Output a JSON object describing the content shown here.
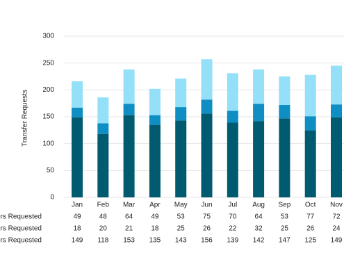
{
  "chart_data": {
    "type": "stacked-bar",
    "y_label": "Transfer Requests",
    "categories": [
      "Jan",
      "Feb",
      "Mar",
      "Apr",
      "May",
      "Jun",
      "Jul",
      "Aug",
      "Sep",
      "Oct",
      "Nov"
    ],
    "series": [
      {
        "name": "nsfers Requested",
        "color": "#005a70",
        "values": [
          149,
          118,
          153,
          135,
          143,
          156,
          139,
          142,
          147,
          125,
          149
        ]
      },
      {
        "name": "nsfers Requested",
        "color": "#0f8ec4",
        "values": [
          18,
          20,
          21,
          18,
          25,
          26,
          22,
          32,
          25,
          26,
          24
        ]
      },
      {
        "name": "nsfers Requested",
        "color": "#93e0f8",
        "values": [
          49,
          48,
          64,
          49,
          53,
          75,
          70,
          64,
          53,
          77,
          72
        ]
      }
    ],
    "ylim": [
      0,
      300
    ],
    "yticks": [
      0,
      50,
      100,
      150,
      200,
      250,
      300
    ],
    "grid": true
  }
}
